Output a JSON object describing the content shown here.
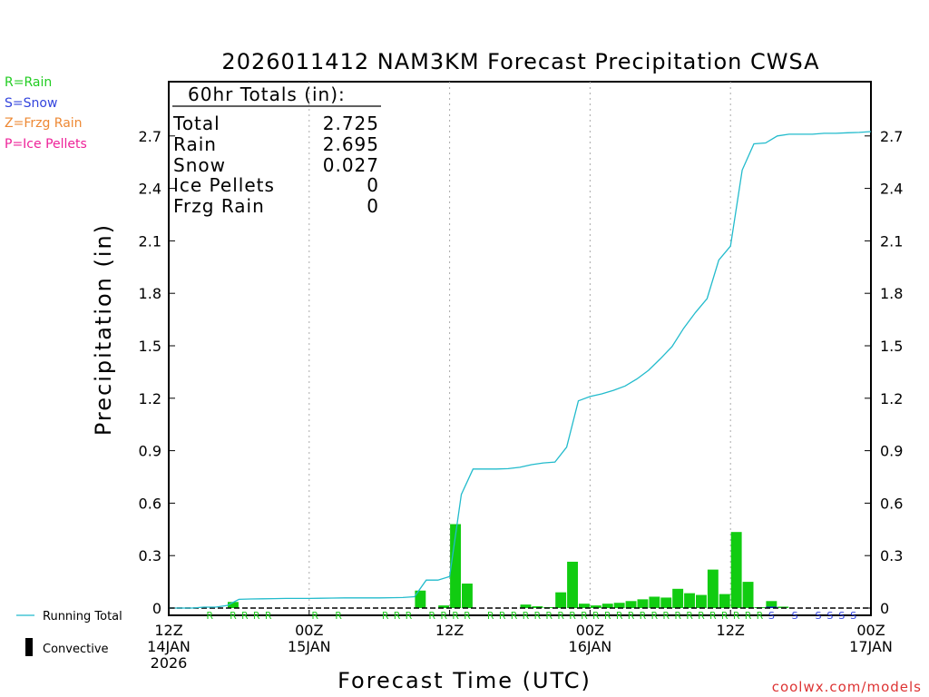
{
  "chart_data": {
    "type": "bar+line",
    "title": "2026011412 NAM3KM Forecast Precipitation CWSA",
    "ylabel": "Precipitation (in)",
    "xlabel": "Forecast Time (UTC)",
    "ylim": [
      0,
      3.0
    ],
    "xlim_hours": [
      0,
      60
    ],
    "yticks": [
      0,
      0.3,
      0.6,
      0.9,
      1.2,
      1.5,
      1.8,
      2.1,
      2.4,
      2.7
    ],
    "ytick_labels": [
      "0",
      "0.3",
      "0.6",
      "0.9",
      "1.2",
      "1.5",
      "1.8",
      "2.1",
      "2.4",
      "2.7"
    ],
    "xticks": [
      {
        "hour": 0,
        "lines": [
          "12Z",
          "14JAN",
          "2026"
        ]
      },
      {
        "hour": 12,
        "lines": [
          "00Z",
          "15JAN"
        ]
      },
      {
        "hour": 24,
        "lines": [
          "12Z"
        ]
      },
      {
        "hour": 36,
        "lines": [
          "00Z",
          "16JAN"
        ]
      },
      {
        "hour": 48,
        "lines": [
          "12Z"
        ]
      },
      {
        "hour": 60,
        "lines": [
          "00Z",
          "17JAN"
        ]
      }
    ],
    "gridlines_hours": [
      12,
      24,
      36,
      48
    ],
    "ptype_legend": [
      {
        "label": "R=Rain",
        "color": "#22cc22"
      },
      {
        "label": "S=Snow",
        "color": "#3344dd"
      },
      {
        "label": "Z=Frzg Rain",
        "color": "#ee8833"
      },
      {
        "label": "P=Ice Pellets",
        "color": "#ee2299"
      }
    ],
    "series_legend": {
      "running_total": {
        "label": "Running Total",
        "color": "#22bbcc"
      },
      "convective": {
        "label": "Convective",
        "color": "#000000"
      }
    },
    "totals": {
      "header": "60hr Totals (in):",
      "rows": [
        {
          "name": "Total",
          "value": "2.725"
        },
        {
          "name": "Rain",
          "value": "2.695"
        },
        {
          "name": "Snow",
          "value": "0.027"
        },
        {
          "name": "Ice Pellets",
          "value": "0"
        },
        {
          "name": "Frzg Rain",
          "value": "0"
        }
      ]
    },
    "hourly_bars": {
      "hours": [
        1,
        2,
        3,
        4,
        5,
        6,
        7,
        8,
        9,
        10,
        11,
        12,
        13,
        14,
        15,
        16,
        17,
        18,
        19,
        20,
        21,
        22,
        23,
        24,
        25,
        26,
        27,
        28,
        29,
        30,
        31,
        32,
        33,
        34,
        35,
        36,
        37,
        38,
        39,
        40,
        41,
        42,
        43,
        44,
        45,
        46,
        47,
        48,
        49,
        50,
        51,
        52,
        53,
        54,
        55,
        56,
        57,
        58,
        59,
        60
      ],
      "values": [
        0,
        0,
        0,
        0,
        0,
        0.035,
        0,
        0,
        0,
        0,
        0,
        0,
        0,
        0,
        0,
        0,
        0,
        0,
        0,
        0,
        0,
        0.1,
        0,
        0.015,
        0.48,
        0.14,
        0,
        0,
        0,
        0,
        0.02,
        0.01,
        0.005,
        0.09,
        0.265,
        0.025,
        0.015,
        0.025,
        0.03,
        0.04,
        0.05,
        0.065,
        0.06,
        0.11,
        0.085,
        0.075,
        0.22,
        0.08,
        0.435,
        0.15,
        0.005,
        0.04,
        0.008,
        0,
        0,
        0,
        0,
        0,
        0,
        0
      ],
      "color": "#11cc11"
    },
    "running_total": {
      "hours": [
        0,
        1,
        2,
        3,
        4,
        5,
        6,
        7,
        8,
        9,
        10,
        11,
        12,
        13,
        14,
        15,
        16,
        17,
        18,
        19,
        20,
        21,
        22,
        23,
        24,
        25,
        26,
        27,
        28,
        29,
        30,
        31,
        32,
        33,
        34,
        35,
        36,
        37,
        38,
        39,
        40,
        41,
        42,
        43,
        44,
        45,
        46,
        47,
        48,
        49,
        50,
        51,
        52,
        53,
        54,
        55,
        56,
        57,
        58,
        59,
        60
      ],
      "values": [
        0,
        0,
        0,
        0.005,
        0.005,
        0.015,
        0.05,
        0.052,
        0.053,
        0.054,
        0.055,
        0.055,
        0.055,
        0.056,
        0.057,
        0.058,
        0.058,
        0.058,
        0.058,
        0.059,
        0.06,
        0.065,
        0.16,
        0.16,
        0.18,
        0.65,
        0.795,
        0.795,
        0.795,
        0.797,
        0.805,
        0.82,
        0.83,
        0.835,
        0.92,
        1.185,
        1.21,
        1.225,
        1.245,
        1.27,
        1.31,
        1.36,
        1.425,
        1.495,
        1.6,
        1.69,
        1.77,
        1.99,
        2.07,
        2.505,
        2.655,
        2.66,
        2.7,
        2.71,
        2.71,
        2.71,
        2.715,
        2.715,
        2.718,
        2.72,
        2.725
      ],
      "color": "#22bbcc"
    },
    "snow_bars": {
      "hours": [
        52
      ],
      "values": [
        0.008
      ],
      "color": "#1122cc"
    },
    "ptype_markers": [
      {
        "hour": 4,
        "type": "R"
      },
      {
        "hour": 6,
        "type": "R"
      },
      {
        "hour": 7,
        "type": "R"
      },
      {
        "hour": 8,
        "type": "R"
      },
      {
        "hour": 9,
        "type": "R"
      },
      {
        "hour": 13,
        "type": "R"
      },
      {
        "hour": 15,
        "type": "R"
      },
      {
        "hour": 19,
        "type": "R"
      },
      {
        "hour": 20,
        "type": "R"
      },
      {
        "hour": 21,
        "type": "R"
      },
      {
        "hour": 23,
        "type": "R"
      },
      {
        "hour": 24,
        "type": "R"
      },
      {
        "hour": 25,
        "type": "R"
      },
      {
        "hour": 26,
        "type": "R"
      },
      {
        "hour": 28,
        "type": "R"
      },
      {
        "hour": 29,
        "type": "R"
      },
      {
        "hour": 30,
        "type": "R"
      },
      {
        "hour": 31,
        "type": "R"
      },
      {
        "hour": 32,
        "type": "R"
      },
      {
        "hour": 33,
        "type": "R"
      },
      {
        "hour": 34,
        "type": "R"
      },
      {
        "hour": 35,
        "type": "R"
      },
      {
        "hour": 36,
        "type": "R"
      },
      {
        "hour": 37,
        "type": "R"
      },
      {
        "hour": 38,
        "type": "R"
      },
      {
        "hour": 39,
        "type": "R"
      },
      {
        "hour": 40,
        "type": "R"
      },
      {
        "hour": 41,
        "type": "R"
      },
      {
        "hour": 42,
        "type": "R"
      },
      {
        "hour": 43,
        "type": "R"
      },
      {
        "hour": 44,
        "type": "R"
      },
      {
        "hour": 45,
        "type": "R"
      },
      {
        "hour": 46,
        "type": "R"
      },
      {
        "hour": 47,
        "type": "R"
      },
      {
        "hour": 48,
        "type": "R"
      },
      {
        "hour": 49,
        "type": "R"
      },
      {
        "hour": 50,
        "type": "R"
      },
      {
        "hour": 51,
        "type": "R"
      },
      {
        "hour": 52,
        "type": "S"
      },
      {
        "hour": 54,
        "type": "S"
      },
      {
        "hour": 56,
        "type": "S"
      },
      {
        "hour": 57,
        "type": "S"
      },
      {
        "hour": 58,
        "type": "S"
      },
      {
        "hour": 59,
        "type": "S"
      }
    ]
  },
  "footer": {
    "credit": "coolwx.com/models"
  }
}
